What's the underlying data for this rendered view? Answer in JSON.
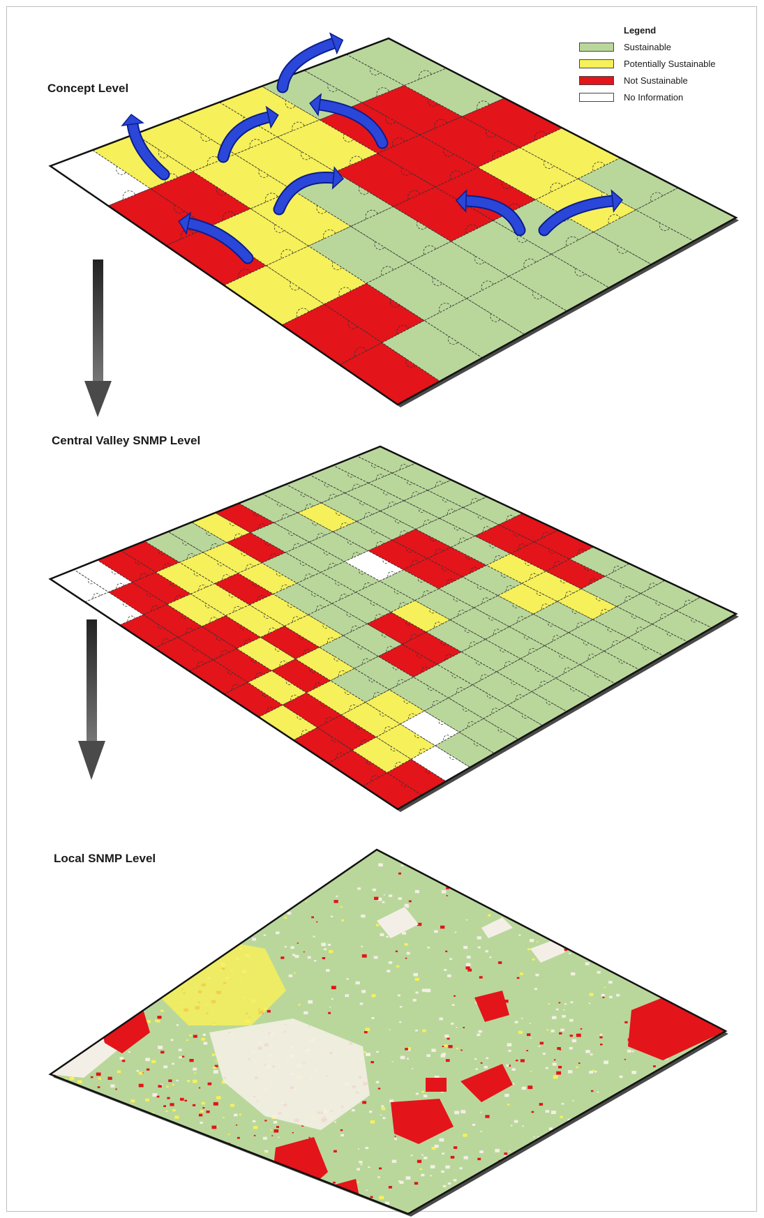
{
  "legend": {
    "title": "Legend",
    "items": [
      {
        "label": "Sustainable",
        "color": "#b9d79b"
      },
      {
        "label": "Potentially Sustainable",
        "color": "#f6f05a"
      },
      {
        "label": "Not Sustainable",
        "color": "#e3141a"
      },
      {
        "label": "No Information",
        "color": "#ffffff"
      }
    ]
  },
  "levels": [
    {
      "label": "Concept Level"
    },
    {
      "label": "Central Valley SNMP Level"
    },
    {
      "label": "Local SNMP Level"
    }
  ],
  "colors": {
    "sustainable": "#b9d79b",
    "potential": "#f6f05a",
    "not": "#e3141a",
    "none": "#ffffff",
    "arrow": "#2b47d9",
    "flow_arrow": "#3b3b3b"
  },
  "concept_grid": [
    [
      "none",
      "potential",
      "potential",
      "potential",
      "potential",
      "sustainable",
      "sustainable",
      "sustainable"
    ],
    [
      "not",
      "not",
      "potential",
      "potential",
      "potential",
      "not",
      "not",
      "sustainable"
    ],
    [
      "not",
      "potential",
      "potential",
      "sustainable",
      "not",
      "not",
      "not",
      "not"
    ],
    [
      "potential",
      "potential",
      "sustainable",
      "sustainable",
      "not",
      "not",
      "potential",
      "potential"
    ],
    [
      "not",
      "not",
      "sustainable",
      "sustainable",
      "sustainable",
      "sustainable",
      "potential",
      "sustainable"
    ],
    [
      "not",
      "sustainable",
      "sustainable",
      "sustainable",
      "sustainable",
      "sustainable",
      "sustainable",
      "sustainable"
    ]
  ],
  "snmp_grid": [
    [
      "none",
      "none",
      "not",
      "not",
      "sustainable",
      "sustainable",
      "potential",
      "not",
      "sustainable",
      "sustainable",
      "sustainable",
      "sustainable",
      "sustainable",
      "sustainable"
    ],
    [
      "none",
      "not",
      "not",
      "potential",
      "potential",
      "potential",
      "not",
      "sustainable",
      "sustainable",
      "potential",
      "sustainable",
      "sustainable",
      "sustainable",
      "sustainable"
    ],
    [
      "not",
      "not",
      "potential",
      "potential",
      "not",
      "potential",
      "sustainable",
      "sustainable",
      "sustainable",
      "sustainable",
      "sustainable",
      "sustainable",
      "sustainable",
      "sustainable"
    ],
    [
      "not",
      "not",
      "not",
      "potential",
      "potential",
      "sustainable",
      "sustainable",
      "sustainable",
      "none",
      "not",
      "not",
      "sustainable",
      "sustainable",
      "sustainable"
    ],
    [
      "not",
      "not",
      "potential",
      "not",
      "potential",
      "sustainable",
      "sustainable",
      "sustainable",
      "sustainable",
      "not",
      "not",
      "sustainable",
      "not",
      "not"
    ],
    [
      "not",
      "potential",
      "not",
      "potential",
      "sustainable",
      "sustainable",
      "not",
      "potential",
      "sustainable",
      "sustainable",
      "sustainable",
      "potential",
      "not",
      "not"
    ],
    [
      "potential",
      "not",
      "potential",
      "sustainable",
      "sustainable",
      "not",
      "not",
      "sustainable",
      "sustainable",
      "sustainable",
      "potential",
      "potential",
      "not",
      "sustainable"
    ],
    [
      "not",
      "not",
      "potential",
      "potential",
      "sustainable",
      "sustainable",
      "sustainable",
      "sustainable",
      "sustainable",
      "sustainable",
      "sustainable",
      "potential",
      "sustainable",
      "sustainable"
    ],
    [
      "not",
      "potential",
      "potential",
      "none",
      "sustainable",
      "sustainable",
      "sustainable",
      "sustainable",
      "sustainable",
      "sustainable",
      "sustainable",
      "sustainable",
      "sustainable",
      "sustainable"
    ],
    [
      "not",
      "not",
      "none",
      "sustainable",
      "sustainable",
      "sustainable",
      "sustainable",
      "sustainable",
      "sustainable",
      "sustainable",
      "sustainable",
      "sustainable",
      "sustainable",
      "sustainable"
    ]
  ]
}
